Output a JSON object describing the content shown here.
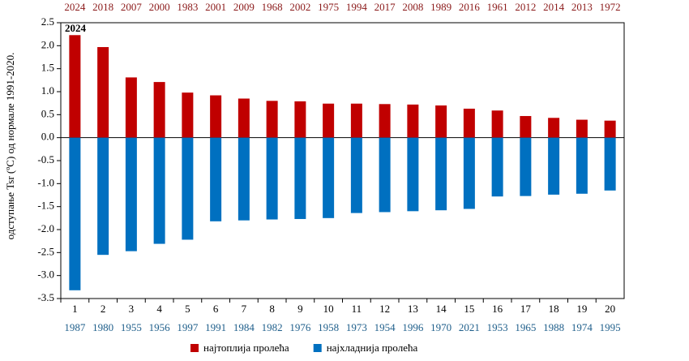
{
  "chart_data": {
    "type": "bar",
    "y_label": "одступање Tsr (ºC)  од  нормале 1991-2020.",
    "annotation": "2024",
    "categories": [
      "1",
      "2",
      "3",
      "4",
      "5",
      "6",
      "7",
      "8",
      "9",
      "10",
      "11",
      "12",
      "13",
      "14",
      "15",
      "16",
      "17",
      "18",
      "19",
      "20"
    ],
    "top_labels": [
      "2024",
      "2018",
      "2007",
      "2000",
      "1983",
      "2001",
      "2009",
      "1968",
      "2002",
      "1975",
      "1994",
      "2017",
      "2008",
      "1989",
      "2016",
      "1961",
      "2012",
      "2014",
      "2013",
      "1972"
    ],
    "bottom_labels": [
      "1987",
      "1980",
      "1955",
      "1956",
      "1997",
      "1991",
      "1984",
      "1982",
      "1976",
      "1958",
      "1973",
      "1954",
      "1996",
      "1970",
      "2021",
      "1953",
      "1965",
      "1988",
      "1974",
      "1995"
    ],
    "series": [
      {
        "name": "најтоплија пролећа",
        "color": "#c00000",
        "values": [
          2.23,
          1.97,
          1.31,
          1.21,
          0.98,
          0.92,
          0.85,
          0.8,
          0.79,
          0.74,
          0.74,
          0.73,
          0.72,
          0.7,
          0.63,
          0.59,
          0.47,
          0.43,
          0.39,
          0.37
        ]
      },
      {
        "name": "најхладнија пролећа",
        "color": "#0070c0",
        "values": [
          -3.32,
          -2.55,
          -2.47,
          -2.31,
          -2.22,
          -1.82,
          -1.8,
          -1.78,
          -1.77,
          -1.75,
          -1.64,
          -1.62,
          -1.6,
          -1.58,
          -1.55,
          -1.28,
          -1.27,
          -1.24,
          -1.22,
          -1.15
        ]
      }
    ],
    "ylim": [
      -3.5,
      2.5
    ],
    "yticks": [
      2.5,
      {
        "value": 2,
        "label": "2.0"
      },
      1.5,
      {
        "value": 1,
        "label": "1.0"
      },
      0.5,
      {
        "value": 0,
        "label": "0.0"
      },
      -0.5,
      {
        "value": -1,
        "label": "-1.0"
      },
      -1.5,
      {
        "value": -2,
        "label": "-2.0"
      },
      -2.5,
      {
        "value": -3,
        "label": "-3.0"
      },
      -3.5
    ]
  }
}
